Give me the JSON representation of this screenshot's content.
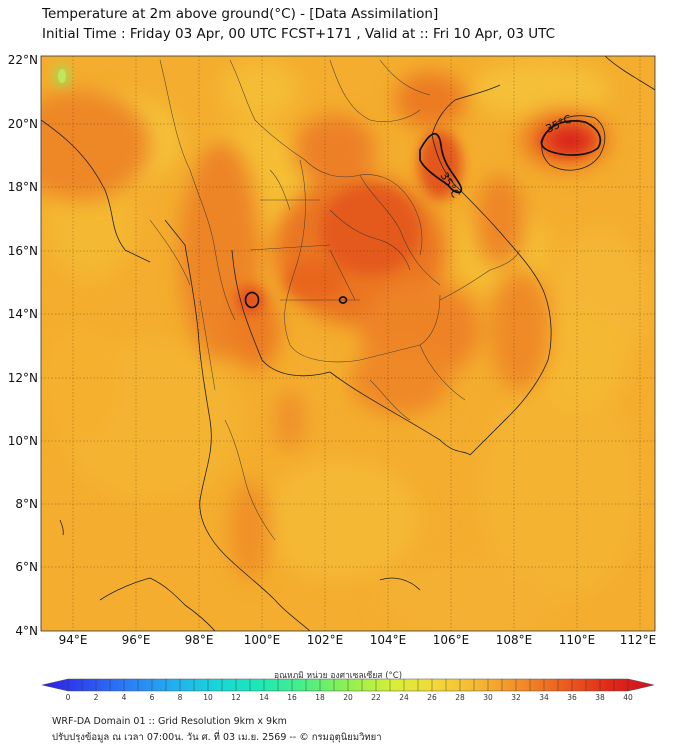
{
  "header": {
    "title": "Temperature at 2m above ground(°C) - [Data Assimilation]",
    "subtitle": "Initial Time : Friday 03 Apr, 00 UTC FCST+171 , Valid at :: Fri 10 Apr, 03 UTC"
  },
  "map": {
    "lon_range": [
      93,
      112.5
    ],
    "lat_range": [
      4,
      22.2
    ],
    "lat_ticks": [
      "22°N",
      "20°N",
      "18°N",
      "16°N",
      "14°N",
      "12°N",
      "10°N",
      "8°N",
      "6°N",
      "4°N"
    ],
    "lon_ticks": [
      "94°E",
      "96°E",
      "98°E",
      "100°E",
      "102°E",
      "104°E",
      "106°E",
      "108°E",
      "110°E",
      "112°E"
    ],
    "contour_labels": [
      "35°C",
      "35°C"
    ],
    "contour_level": "35°C"
  },
  "colorbar": {
    "label": "อุณหภูมิ หน่วย องศาเซลเซียส (°C)",
    "min": 0,
    "max": 40,
    "ticks": [
      "0",
      "2",
      "4",
      "6",
      "8",
      "10",
      "12",
      "14",
      "16",
      "18",
      "20",
      "22",
      "24",
      "26",
      "28",
      "30",
      "32",
      "34",
      "36",
      "38",
      "40"
    ],
    "colors": [
      "#2d1ee0",
      "#2c4cf0",
      "#2b7ff6",
      "#22aef0",
      "#19d6d8",
      "#1ee8b4",
      "#4aef86",
      "#90f050",
      "#d6ef38",
      "#f4d83a",
      "#f5b632",
      "#f28a26",
      "#ec5a1e",
      "#e02818",
      "#d00e1e"
    ]
  },
  "footer": {
    "line1": "WRF-DA Domain 01 :: Grid Resolution 9km x 9km",
    "line2": "ปรับปรุงข้อมูล ณ เวลา 07:00น. วัน ศ. ที่ 03 เม.ย. 2569 -- © กรมอุตุนิยมวิทยา"
  }
}
